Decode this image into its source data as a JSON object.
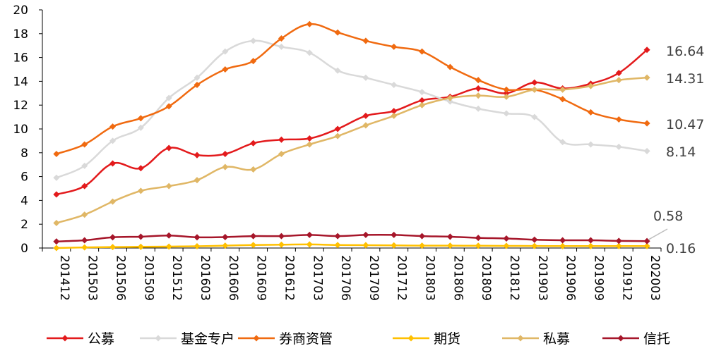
{
  "chart_data": {
    "type": "line",
    "title": "",
    "xlabel": "",
    "ylabel": "",
    "ylim": [
      0,
      20
    ],
    "yticks": [
      0,
      2,
      4,
      6,
      8,
      10,
      12,
      14,
      16,
      18,
      20
    ],
    "grid": false,
    "legend_position": "bottom",
    "categories": [
      "201412",
      "201503",
      "201506",
      "201509",
      "201512",
      "201603",
      "201606",
      "201609",
      "201612",
      "201703",
      "201706",
      "201709",
      "201712",
      "201803",
      "201806",
      "201809",
      "201812",
      "201903",
      "201906",
      "201909",
      "201912",
      "202003"
    ],
    "series": [
      {
        "name": "公募",
        "color": "#e31a1c",
        "end_label": "16.64",
        "values": [
          4.5,
          5.2,
          7.1,
          6.7,
          8.4,
          7.8,
          7.9,
          8.8,
          9.1,
          9.2,
          10.0,
          11.1,
          11.5,
          12.4,
          12.7,
          13.4,
          13.0,
          13.9,
          13.4,
          13.8,
          14.7,
          16.64
        ]
      },
      {
        "name": "基金专户",
        "color": "#d9d9d9",
        "end_label": "8.14",
        "values": [
          5.9,
          6.9,
          9.0,
          10.1,
          12.6,
          14.3,
          16.5,
          17.4,
          16.9,
          16.4,
          14.9,
          14.3,
          13.7,
          13.1,
          12.3,
          11.7,
          11.3,
          11.0,
          8.9,
          8.7,
          8.5,
          8.14
        ]
      },
      {
        "name": "券商资管",
        "color": "#f06a10",
        "end_label": "10.47",
        "values": [
          7.9,
          8.7,
          10.2,
          10.9,
          11.9,
          13.7,
          15.0,
          15.7,
          17.6,
          18.8,
          18.1,
          17.4,
          16.9,
          16.5,
          15.2,
          14.1,
          13.3,
          13.3,
          12.5,
          11.4,
          10.8,
          10.47
        ]
      },
      {
        "name": "期货",
        "color": "#ffc000",
        "end_label": "0.16",
        "values": [
          0.0,
          0.05,
          0.08,
          0.1,
          0.12,
          0.15,
          0.2,
          0.25,
          0.28,
          0.3,
          0.25,
          0.24,
          0.22,
          0.2,
          0.2,
          0.19,
          0.18,
          0.17,
          0.16,
          0.16,
          0.16,
          0.16
        ]
      },
      {
        "name": "私募",
        "color": "#e0b766",
        "end_label": "14.31",
        "values": [
          2.1,
          2.8,
          3.9,
          4.8,
          5.2,
          5.7,
          6.8,
          6.6,
          7.9,
          8.7,
          9.4,
          10.3,
          11.1,
          12.0,
          12.6,
          12.8,
          12.7,
          13.3,
          13.3,
          13.6,
          14.1,
          14.31
        ]
      },
      {
        "name": "信托",
        "color": "#a6162a",
        "end_label": "0.58",
        "values": [
          0.55,
          0.65,
          0.9,
          0.95,
          1.05,
          0.9,
          0.92,
          1.0,
          1.0,
          1.1,
          1.0,
          1.1,
          1.1,
          1.0,
          0.95,
          0.85,
          0.8,
          0.7,
          0.65,
          0.65,
          0.6,
          0.58
        ]
      }
    ]
  }
}
